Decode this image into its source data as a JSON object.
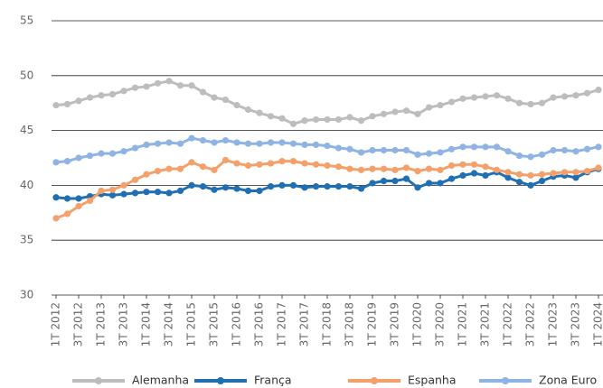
{
  "chart_data": {
    "type": "line",
    "categories": [
      "1T 2012",
      null,
      "3T 2012",
      null,
      "1T 2013",
      null,
      "3T 2013",
      null,
      "1T 2014",
      null,
      "3T 2014",
      null,
      "1T 2015",
      null,
      "3T 2015",
      null,
      "1T 2016",
      null,
      "3T 2016",
      null,
      "1T 2017",
      null,
      "3T 2017",
      null,
      "1T 2018",
      null,
      "3T 2018",
      null,
      "1T 2019",
      null,
      "3T 2019",
      null,
      "1T 2020",
      null,
      "3T 2020",
      null,
      "1T 2021",
      null,
      "3T 2021",
      null,
      "1T 2022",
      null,
      "3T 2022",
      null,
      "1T 2023",
      null,
      "3T 2023",
      null,
      "1T 2024"
    ],
    "series": [
      {
        "name": "Alemanha",
        "color": "#bdbdbd",
        "values": [
          47.3,
          47.4,
          47.7,
          48.0,
          48.2,
          48.3,
          48.6,
          48.9,
          49.0,
          49.3,
          49.5,
          49.1,
          49.1,
          48.5,
          48.0,
          47.8,
          47.3,
          46.9,
          46.6,
          46.3,
          46.1,
          45.6,
          45.9,
          46.0,
          46.0,
          46.0,
          46.2,
          45.9,
          46.3,
          46.5,
          46.7,
          46.8,
          46.5,
          47.1,
          47.3,
          47.6,
          47.9,
          48.0,
          48.1,
          48.2,
          47.9,
          47.5,
          47.4,
          47.5,
          48.0,
          48.1,
          48.2,
          48.4,
          48.7
        ]
      },
      {
        "name": "França",
        "color": "#1f6fb2",
        "values": [
          38.9,
          38.8,
          38.8,
          39.0,
          39.2,
          39.1,
          39.2,
          39.3,
          39.4,
          39.4,
          39.3,
          39.5,
          40.0,
          39.9,
          39.6,
          39.8,
          39.7,
          39.5,
          39.5,
          39.9,
          40.0,
          40.0,
          39.8,
          39.9,
          39.9,
          39.9,
          39.9,
          39.7,
          40.2,
          40.4,
          40.4,
          40.6,
          39.8,
          40.2,
          40.2,
          40.6,
          40.9,
          41.1,
          40.9,
          41.2,
          40.7,
          40.3,
          40.0,
          40.4,
          40.8,
          40.9,
          40.7,
          41.2,
          41.5
        ]
      },
      {
        "name": "Espanha",
        "color": "#f4a06b",
        "values": [
          37.0,
          37.4,
          38.1,
          38.6,
          39.5,
          39.6,
          40.0,
          40.5,
          41.0,
          41.3,
          41.5,
          41.5,
          42.1,
          41.7,
          41.4,
          42.3,
          42.0,
          41.8,
          41.9,
          42.0,
          42.2,
          42.2,
          42.0,
          41.9,
          41.8,
          41.7,
          41.5,
          41.4,
          41.5,
          41.5,
          41.4,
          41.6,
          41.3,
          41.5,
          41.4,
          41.8,
          41.9,
          41.9,
          41.7,
          41.4,
          41.2,
          41.0,
          40.9,
          41.0,
          41.1,
          41.2,
          41.2,
          41.3,
          41.6
        ]
      },
      {
        "name": "Zona Euro",
        "color": "#8fb4e3",
        "values": [
          42.1,
          42.2,
          42.5,
          42.7,
          42.9,
          42.9,
          43.1,
          43.4,
          43.7,
          43.8,
          43.9,
          43.8,
          44.3,
          44.1,
          43.9,
          44.1,
          43.9,
          43.8,
          43.8,
          43.9,
          43.9,
          43.8,
          43.7,
          43.7,
          43.6,
          43.4,
          43.3,
          43.0,
          43.2,
          43.2,
          43.2,
          43.2,
          42.8,
          42.9,
          43.0,
          43.3,
          43.5,
          43.5,
          43.5,
          43.5,
          43.1,
          42.7,
          42.6,
          42.8,
          43.2,
          43.2,
          43.1,
          43.3,
          43.5
        ]
      }
    ],
    "ylim": [
      30,
      55
    ],
    "yticks": [
      30,
      35,
      40,
      45,
      50,
      55
    ],
    "grid": true
  }
}
